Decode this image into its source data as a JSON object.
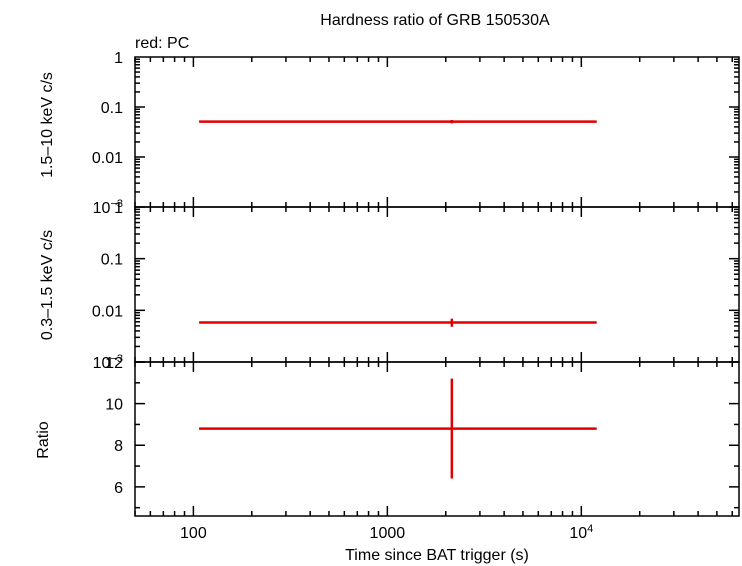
{
  "chart_data": {
    "type": "scatter",
    "title": "Hardness ratio of GRB 150530A",
    "legend": "red: PC",
    "xlabel": "Time since BAT trigger (s)",
    "xscale": "log",
    "xlim": [
      50,
      65000
    ],
    "x_ticks": [
      {
        "value": 100,
        "label": "100"
      },
      {
        "value": 1000,
        "label": "1000"
      },
      {
        "value": 10000,
        "label": "10",
        "sup": "4"
      }
    ],
    "series_color": "#e00000",
    "panels": [
      {
        "name": "hard-band",
        "ylabel": "1.5–10 keV c/s",
        "yscale": "log",
        "ylim": [
          0.001,
          1
        ],
        "y_ticks": [
          {
            "value": 1,
            "label": "1"
          },
          {
            "value": 0.1,
            "label": "0.1"
          },
          {
            "value": 0.01,
            "label": "0.01"
          },
          {
            "value": 0.001,
            "label": "10",
            "sup": "−3"
          }
        ],
        "points": [
          {
            "x": 2150,
            "x_low": 107,
            "x_high": 12000,
            "y": 0.051,
            "y_low": 0.047,
            "y_high": 0.055
          }
        ]
      },
      {
        "name": "soft-band",
        "ylabel": "0.3–1.5 keV c/s",
        "yscale": "log",
        "ylim": [
          0.001,
          1
        ],
        "y_ticks": [
          {
            "value": 1,
            "label": "1"
          },
          {
            "value": 0.1,
            "label": "0.1"
          },
          {
            "value": 0.01,
            "label": "0.01"
          },
          {
            "value": 0.001,
            "label": "10",
            "sup": "−3"
          }
        ],
        "points": [
          {
            "x": 2150,
            "x_low": 107,
            "x_high": 12000,
            "y": 0.0058,
            "y_low": 0.0048,
            "y_high": 0.0069
          }
        ]
      },
      {
        "name": "ratio",
        "ylabel": "Ratio",
        "yscale": "linear",
        "ylim": [
          4.6,
          12
        ],
        "y_ticks": [
          {
            "value": 12,
            "label": "12"
          },
          {
            "value": 10,
            "label": "10"
          },
          {
            "value": 8,
            "label": "8"
          },
          {
            "value": 6,
            "label": "6"
          }
        ],
        "points": [
          {
            "x": 2150,
            "x_low": 107,
            "x_high": 12000,
            "y": 8.8,
            "y_low": 6.4,
            "y_high": 11.2
          }
        ]
      }
    ]
  }
}
